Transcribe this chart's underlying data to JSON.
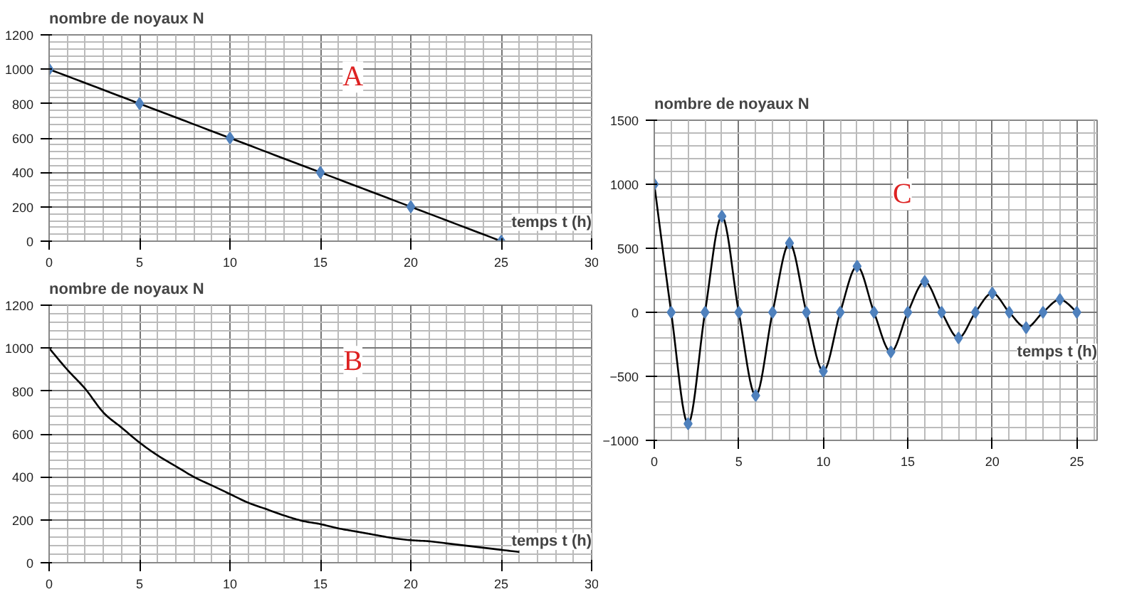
{
  "chart_data": [
    {
      "type": "line",
      "ylabel": "nombre de noyaux N",
      "xlabel": "temps t (h)",
      "annotations": [
        "A"
      ],
      "x": [
        0,
        5,
        10,
        15,
        20,
        25
      ],
      "series": [
        {
          "color": "#000000",
          "values": [
            1000,
            800,
            600,
            400,
            200,
            0
          ]
        }
      ],
      "marker": "diamond",
      "xlim": [
        0,
        30
      ],
      "xticks": [
        0,
        5,
        10,
        15,
        20,
        25,
        30
      ],
      "ylim": [
        0,
        1200
      ],
      "yticks": [
        0,
        200,
        400,
        600,
        800,
        1000,
        1200
      ],
      "grid": true
    },
    {
      "type": "line",
      "ylabel": "nombre de noyaux N",
      "xlabel": "temps t (h)",
      "annotations": [
        "B"
      ],
      "x": [
        0,
        1,
        2,
        3,
        4,
        5,
        6,
        7,
        8,
        9,
        10,
        11,
        12,
        13,
        14,
        15,
        16,
        17,
        18,
        19,
        20,
        21,
        22,
        23,
        24,
        25,
        26
      ],
      "series": [
        {
          "color": "#000000",
          "values": [
            1000,
            900,
            810,
            700,
            630,
            560,
            500,
            450,
            400,
            360,
            320,
            280,
            250,
            220,
            195,
            180,
            160,
            145,
            130,
            115,
            105,
            100,
            90,
            80,
            70,
            60,
            50
          ]
        }
      ],
      "xlim": [
        0,
        30
      ],
      "xticks": [
        0,
        5,
        10,
        15,
        20,
        25,
        30
      ],
      "ylim": [
        0,
        1200
      ],
      "yticks": [
        0,
        200,
        400,
        600,
        800,
        1000,
        1200
      ],
      "grid": true
    },
    {
      "type": "line",
      "ylabel": "nombre de noyaux N",
      "xlabel": "temps t (h)",
      "annotations": [
        "C"
      ],
      "x": [
        0,
        1,
        2,
        3,
        4,
        5,
        6,
        7,
        8,
        9,
        10,
        11,
        12,
        13,
        14,
        15,
        16,
        17,
        18,
        19,
        20,
        21,
        22,
        23,
        24,
        25
      ],
      "series": [
        {
          "color": "#000000",
          "values": [
            1000,
            0,
            -870,
            0,
            750,
            0,
            -650,
            0,
            540,
            0,
            -460,
            0,
            360,
            0,
            -310,
            0,
            240,
            0,
            -200,
            0,
            150,
            0,
            -120,
            0,
            100,
            0
          ]
        }
      ],
      "marker": "diamond",
      "xlim": [
        0,
        26.2
      ],
      "xticks": [
        0,
        5,
        10,
        15,
        20,
        25
      ],
      "ylim": [
        -1000,
        1500
      ],
      "yticks": [
        -1000,
        -500,
        0,
        500,
        1000,
        1500
      ],
      "grid": true
    }
  ]
}
